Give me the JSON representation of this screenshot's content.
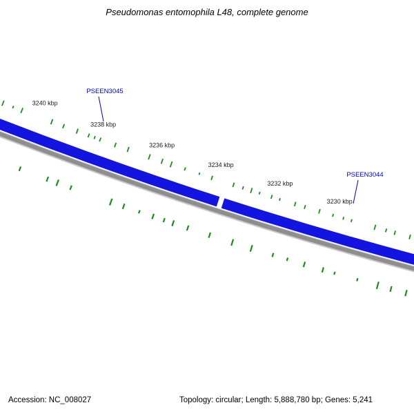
{
  "title": "Pseudomonas entomophila L48, complete genome",
  "status_bar": {
    "accession": "Accession: NC_008027",
    "summary": "Topology: circular; Length: 5,888,780 bp; Genes: 5,241"
  },
  "chart_data": {
    "type": "circular-genome-map-segment",
    "organism": "Pseudomonas entomophila L48",
    "accession": "NC_008027",
    "topology": "circular",
    "length_bp": 5888780,
    "genes_total": 5241,
    "visible_range_kbp": [
      3226,
      3243
    ],
    "scale_ticks": [
      {
        "kbp": 3240,
        "label": "3240 kbp"
      },
      {
        "kbp": 3238,
        "label": "3238 kbp"
      },
      {
        "kbp": 3236,
        "label": "3236 kbp"
      },
      {
        "kbp": 3234,
        "label": "3234 kbp"
      },
      {
        "kbp": 3232,
        "label": "3232 kbp"
      },
      {
        "kbp": 3230,
        "label": "3230 kbp"
      }
    ],
    "genes": [
      {
        "name": "PSEEN3045",
        "visible_arc_kbp": [
          3243.3,
          3234.02
        ]
      },
      {
        "name": "PSEEN3044",
        "visible_arc_kbp": [
          3233.86,
          3225.6
        ]
      }
    ],
    "feature_tick_rings": [
      "upper-green-tick-ring",
      "lower-green-tick-ring"
    ],
    "colors": {
      "gene_band": "#1414e0",
      "backbone": "#8e8e8e",
      "backbone_soft": "#c9c9c9",
      "feature_ticks": "#1e8a1e",
      "gene_label": "#0000bb",
      "scale_label": "#1a1a1a"
    },
    "legend": "none",
    "grid": "none"
  }
}
